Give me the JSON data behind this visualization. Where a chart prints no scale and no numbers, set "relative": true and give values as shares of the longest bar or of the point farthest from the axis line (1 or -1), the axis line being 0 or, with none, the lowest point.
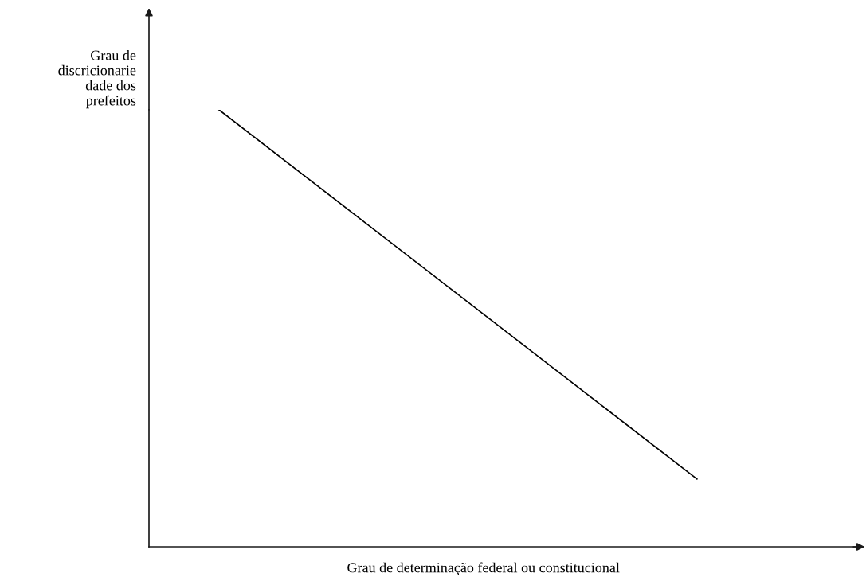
{
  "chart_data": {
    "type": "line",
    "relative": true,
    "xlabel": "Grau de determinação federal ou constitucional",
    "ylabel": "Grau de\ndiscricionarie\ndade dos\nprefeitos",
    "categories": [
      null,
      null
    ],
    "series": [
      {
        "color": "#000000",
        "values": [
          1,
          0.155
        ]
      }
    ],
    "tick_labels": false,
    "grid": false,
    "legend": false,
    "marker": "none",
    "line_style": "solid"
  }
}
